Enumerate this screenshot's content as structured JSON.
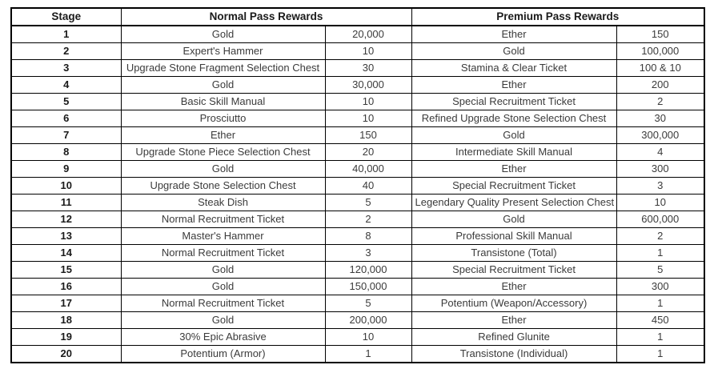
{
  "colors": {
    "background": "#ffffff",
    "border": "#000000",
    "header_text": "#1a1a1a",
    "cell_text": "#3b3b3b"
  },
  "table": {
    "headers": {
      "stage": "Stage",
      "normal": "Normal Pass Rewards",
      "premium": "Premium Pass Rewards"
    },
    "rows": [
      {
        "stage": "1",
        "normal_item": "Gold",
        "normal_qty": "20,000",
        "premium_item": "Ether",
        "premium_qty": "150"
      },
      {
        "stage": "2",
        "normal_item": "Expert's Hammer",
        "normal_qty": "10",
        "premium_item": "Gold",
        "premium_qty": "100,000"
      },
      {
        "stage": "3",
        "normal_item": "Upgrade Stone Fragment Selection Chest",
        "normal_qty": "30",
        "premium_item": "Stamina & Clear Ticket",
        "premium_qty": "100 & 10"
      },
      {
        "stage": "4",
        "normal_item": "Gold",
        "normal_qty": "30,000",
        "premium_item": "Ether",
        "premium_qty": "200"
      },
      {
        "stage": "5",
        "normal_item": "Basic Skill Manual",
        "normal_qty": "10",
        "premium_item": "Special Recruitment Ticket",
        "premium_qty": "2"
      },
      {
        "stage": "6",
        "normal_item": "Prosciutto",
        "normal_qty": "10",
        "premium_item": "Refined Upgrade Stone Selection Chest",
        "premium_qty": "30"
      },
      {
        "stage": "7",
        "normal_item": "Ether",
        "normal_qty": "150",
        "premium_item": "Gold",
        "premium_qty": "300,000"
      },
      {
        "stage": "8",
        "normal_item": "Upgrade Stone Piece Selection Chest",
        "normal_qty": "20",
        "premium_item": "Intermediate Skill Manual",
        "premium_qty": "4"
      },
      {
        "stage": "9",
        "normal_item": "Gold",
        "normal_qty": "40,000",
        "premium_item": "Ether",
        "premium_qty": "300"
      },
      {
        "stage": "10",
        "normal_item": "Upgrade Stone Selection Chest",
        "normal_qty": "40",
        "premium_item": "Special Recruitment Ticket",
        "premium_qty": "3"
      },
      {
        "stage": "11",
        "normal_item": "Steak Dish",
        "normal_qty": "5",
        "premium_item": "Legendary Quality Present Selection Chest",
        "premium_qty": "10"
      },
      {
        "stage": "12",
        "normal_item": "Normal Recruitment Ticket",
        "normal_qty": "2",
        "premium_item": "Gold",
        "premium_qty": "600,000"
      },
      {
        "stage": "13",
        "normal_item": "Master's Hammer",
        "normal_qty": "8",
        "premium_item": "Professional Skill Manual",
        "premium_qty": "2"
      },
      {
        "stage": "14",
        "normal_item": "Normal Recruitment Ticket",
        "normal_qty": "3",
        "premium_item": "Transistone (Total)",
        "premium_qty": "1"
      },
      {
        "stage": "15",
        "normal_item": "Gold",
        "normal_qty": "120,000",
        "premium_item": "Special Recruitment Ticket",
        "premium_qty": "5"
      },
      {
        "stage": "16",
        "normal_item": "Gold",
        "normal_qty": "150,000",
        "premium_item": "Ether",
        "premium_qty": "300"
      },
      {
        "stage": "17",
        "normal_item": "Normal Recruitment Ticket",
        "normal_qty": "5",
        "premium_item": "Potentium (Weapon/Accessory)",
        "premium_qty": "1"
      },
      {
        "stage": "18",
        "normal_item": "Gold",
        "normal_qty": "200,000",
        "premium_item": "Ether",
        "premium_qty": "450"
      },
      {
        "stage": "19",
        "normal_item": "30% Epic Abrasive",
        "normal_qty": "10",
        "premium_item": "Refined Glunite",
        "premium_qty": "1"
      },
      {
        "stage": "20",
        "normal_item": "Potentium (Armor)",
        "normal_qty": "1",
        "premium_item": "Transistone (Individual)",
        "premium_qty": "1"
      }
    ]
  }
}
